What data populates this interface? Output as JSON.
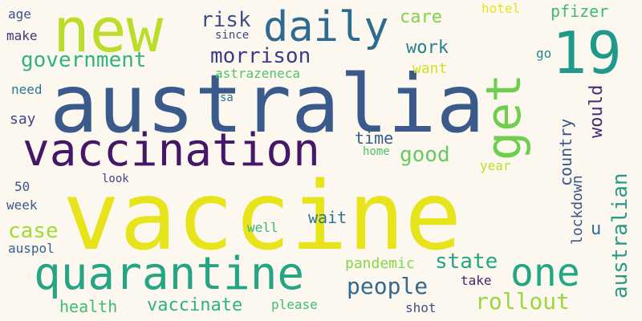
{
  "words": [
    {
      "text": "vaccine",
      "color": "#e8e41b"
    },
    {
      "text": "australia",
      "color": "#3b5a8c"
    },
    {
      "text": "new",
      "color": "#bcdc2a"
    },
    {
      "text": "vaccination",
      "color": "#451769"
    },
    {
      "text": "quarantine",
      "color": "#25a583"
    },
    {
      "text": "get",
      "color": "#6fce4d"
    },
    {
      "text": "19",
      "color": "#1f9a8a"
    },
    {
      "text": "daily",
      "color": "#2f6b8e"
    },
    {
      "text": "one",
      "color": "#22a784"
    },
    {
      "text": "government",
      "color": "#30b47b"
    },
    {
      "text": "morrison",
      "color": "#3e3b85"
    },
    {
      "text": "people",
      "color": "#306a8e"
    },
    {
      "text": "rollout",
      "color": "#98d83e"
    },
    {
      "text": "state",
      "color": "#21a685"
    },
    {
      "text": "vaccinate",
      "color": "#2eb37c"
    },
    {
      "text": "australian",
      "color": "#2a9b89"
    },
    {
      "text": "health",
      "color": "#3fbb74"
    },
    {
      "text": "case",
      "color": "#a2da36"
    },
    {
      "text": "risk",
      "color": "#3d4e8a"
    },
    {
      "text": "good",
      "color": "#63cb5f"
    },
    {
      "text": "would",
      "color": "#472a7a"
    },
    {
      "text": "pfizer",
      "color": "#3cbb75"
    },
    {
      "text": "country",
      "color": "#3a548c"
    },
    {
      "text": "care",
      "color": "#82d34a"
    },
    {
      "text": "work",
      "color": "#27808e"
    },
    {
      "text": "time",
      "color": "#365d8d"
    },
    {
      "text": "wait",
      "color": "#2b738e"
    },
    {
      "text": "pandemic",
      "color": "#87d549"
    },
    {
      "text": "lockdown",
      "color": "#3a568c"
    },
    {
      "text": "u",
      "color": "#2e6f8e"
    },
    {
      "text": "say",
      "color": "#404588"
    },
    {
      "text": "want",
      "color": "#d3e220"
    },
    {
      "text": "astrazeneca",
      "color": "#50c46a"
    },
    {
      "text": "week",
      "color": "#3a5b8c"
    },
    {
      "text": "age",
      "color": "#3b528b"
    },
    {
      "text": "make",
      "color": "#46327e"
    },
    {
      "text": "need",
      "color": "#2a788e"
    },
    {
      "text": "go",
      "color": "#23888e"
    },
    {
      "text": "hotel",
      "color": "#e5e419"
    },
    {
      "text": "since",
      "color": "#3f4788"
    },
    {
      "text": "sa",
      "color": "#2c718e"
    },
    {
      "text": "home",
      "color": "#4ac16d"
    },
    {
      "text": "year",
      "color": "#bddf26"
    },
    {
      "text": "look",
      "color": "#414287"
    },
    {
      "text": "50",
      "color": "#3a548c"
    },
    {
      "text": "auspol",
      "color": "#33638d"
    },
    {
      "text": "well",
      "color": "#35b779"
    },
    {
      "text": "take",
      "color": "#481e6f"
    },
    {
      "text": "please",
      "color": "#3fbc73"
    },
    {
      "text": "shot",
      "color": "#3b518b"
    }
  ]
}
